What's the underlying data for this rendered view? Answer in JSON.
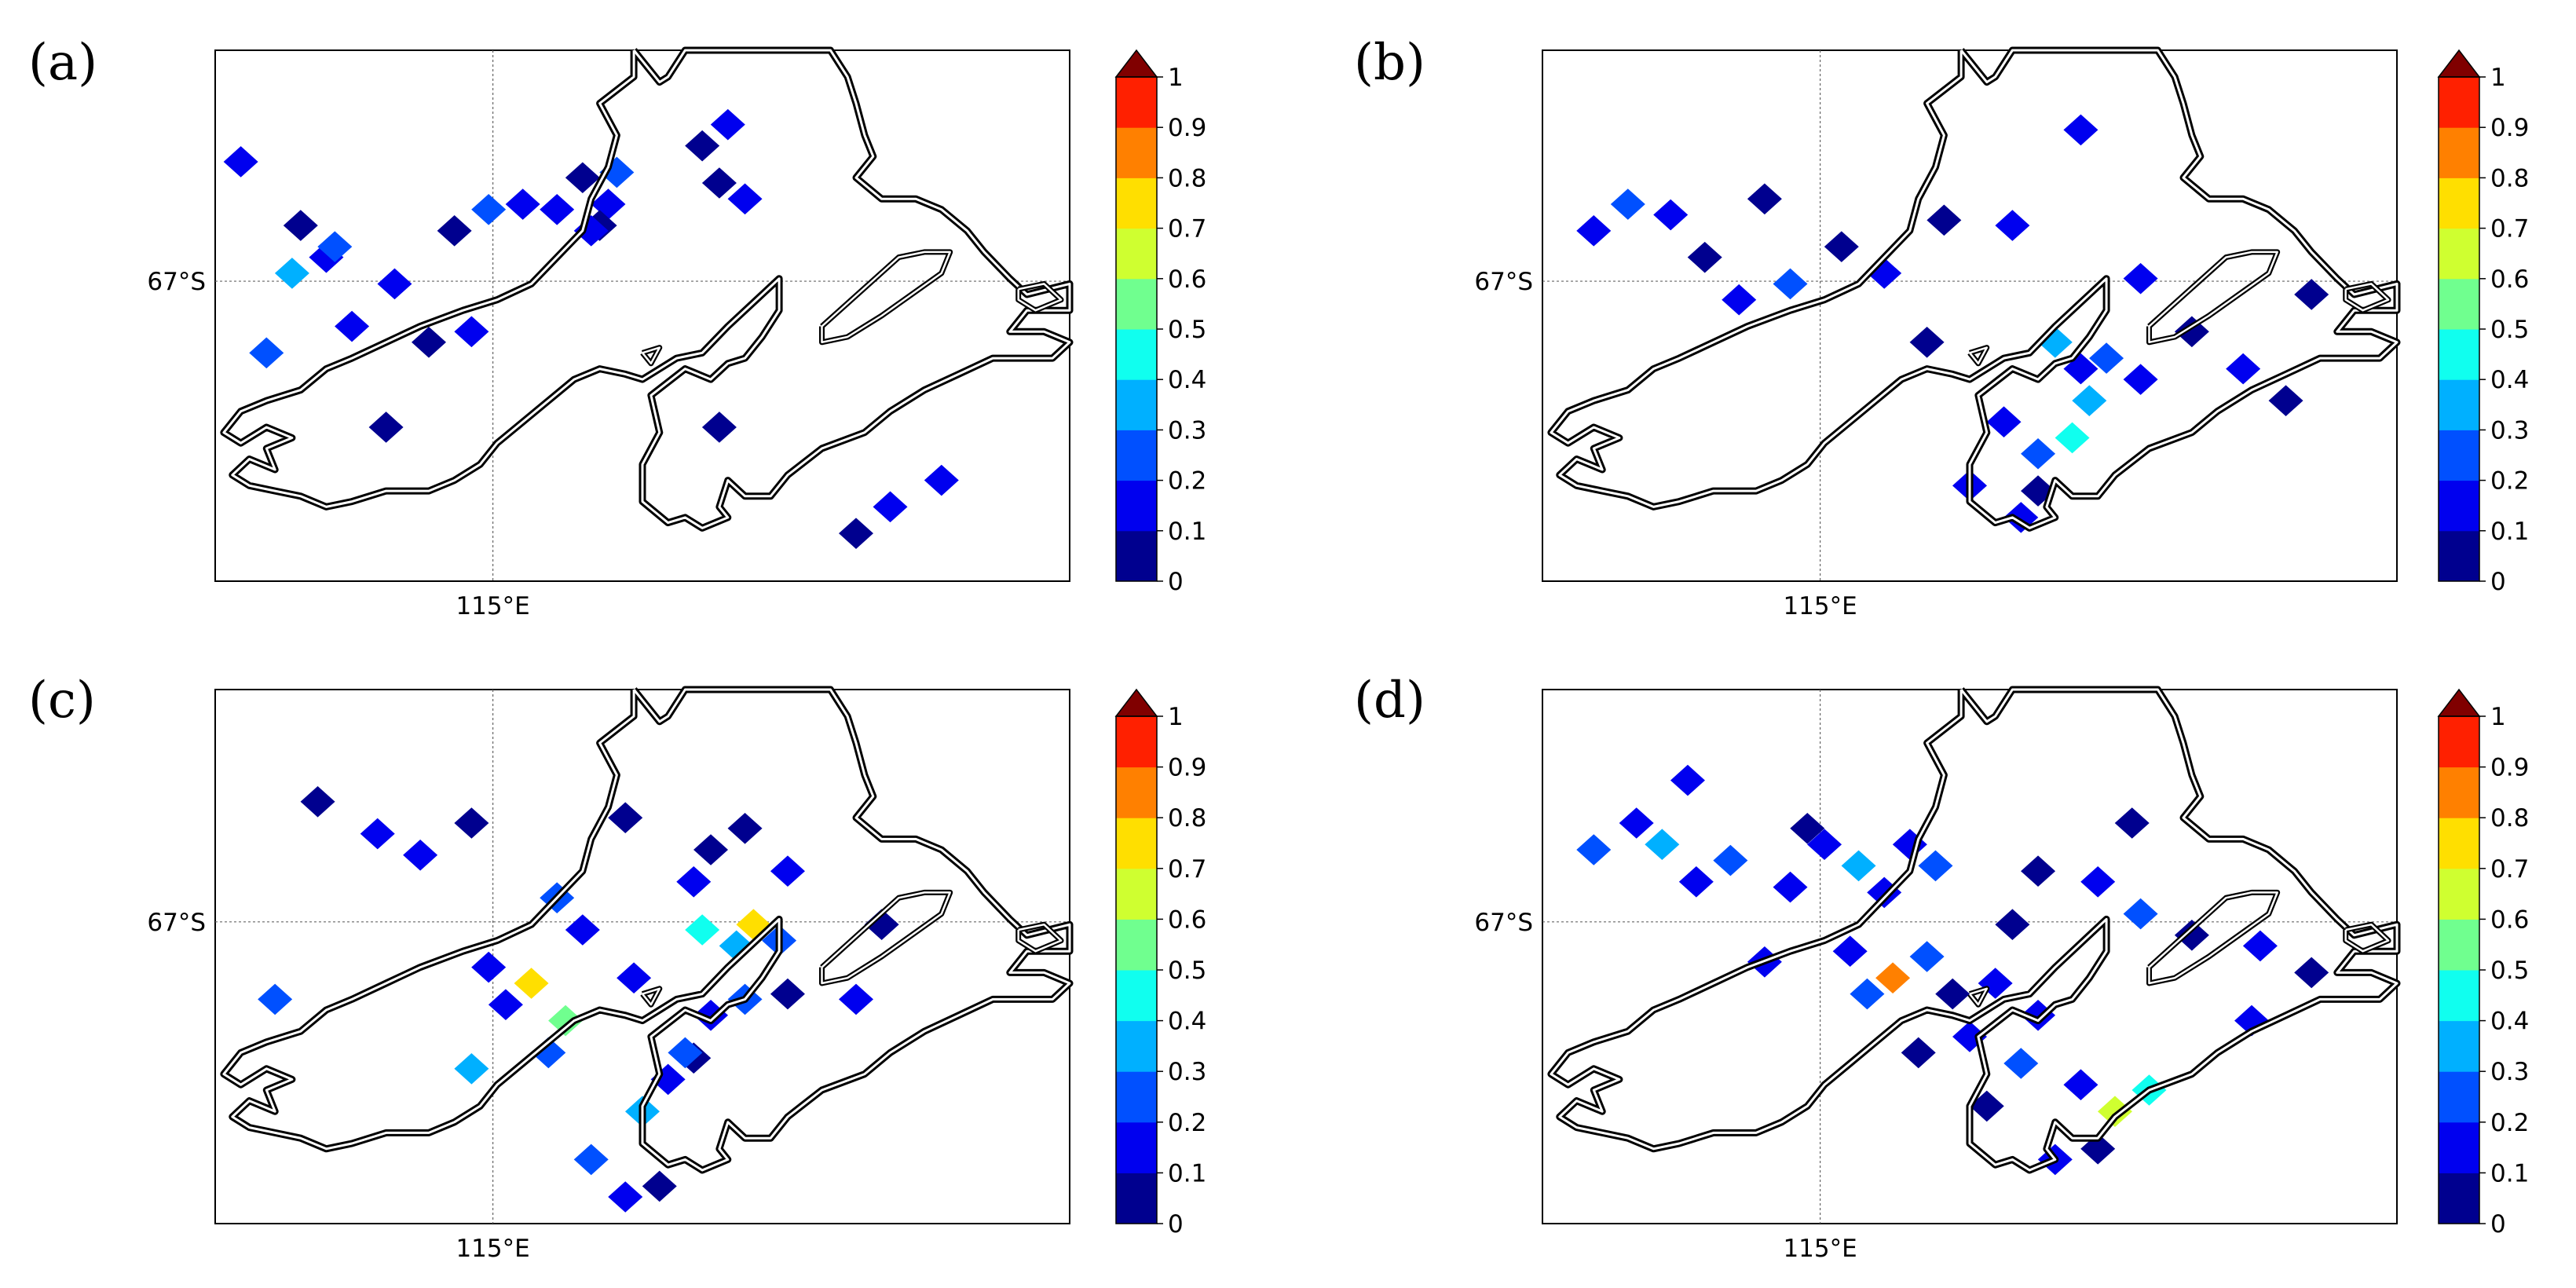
{
  "figure": {
    "panels": [
      {
        "id": "a",
        "label": "(a)",
        "lat_label": "67°S",
        "lon_label": "115°E"
      },
      {
        "id": "b",
        "label": "(b)",
        "lat_label": "67°S",
        "lon_label": "115°E"
      },
      {
        "id": "c",
        "label": "(c)",
        "lat_label": "67°S",
        "lon_label": "115°E"
      },
      {
        "id": "d",
        "label": "(d)",
        "lat_label": "67°S",
        "lon_label": "115°E"
      }
    ],
    "colorbar": {
      "ticks": [
        "0",
        "0.1",
        "0.2",
        "0.3",
        "0.4",
        "0.5",
        "0.6",
        "0.7",
        "0.8",
        "0.9",
        "1"
      ],
      "colors": [
        "#00008f",
        "#0000ef",
        "#0050ff",
        "#00b0ff",
        "#10ffef",
        "#70ff8f",
        "#cfff30",
        "#ffdf00",
        "#ff8000",
        "#ff2000",
        "#bf0000"
      ],
      "extend_color": "#800000",
      "extend": "max"
    },
    "coastline_color": "#000000"
  },
  "patches": {
    "a": [
      [
        0.36,
        0.29,
        1
      ],
      [
        0.43,
        0.24,
        0
      ],
      [
        0.47,
        0.23,
        2
      ],
      [
        0.46,
        0.29,
        1
      ],
      [
        0.45,
        0.33,
        0
      ],
      [
        0.57,
        0.18,
        0
      ],
      [
        0.6,
        0.14,
        1
      ],
      [
        0.44,
        0.34,
        1
      ],
      [
        0.32,
        0.3,
        2
      ],
      [
        0.28,
        0.34,
        0
      ],
      [
        0.4,
        0.3,
        1
      ],
      [
        0.59,
        0.25,
        0
      ],
      [
        0.62,
        0.28,
        1
      ],
      [
        0.13,
        0.39,
        1
      ],
      [
        0.1,
        0.33,
        0
      ],
      [
        0.03,
        0.21,
        1
      ],
      [
        0.09,
        0.42,
        3
      ],
      [
        0.14,
        0.37,
        2
      ],
      [
        0.21,
        0.44,
        1
      ],
      [
        0.25,
        0.55,
        0
      ],
      [
        0.3,
        0.53,
        1
      ],
      [
        0.2,
        0.71,
        0
      ],
      [
        0.16,
        0.52,
        1
      ],
      [
        0.06,
        0.57,
        2
      ],
      [
        0.59,
        0.71,
        0
      ],
      [
        0.85,
        0.81,
        1
      ],
      [
        0.75,
        0.91,
        0
      ],
      [
        0.79,
        0.86,
        1
      ]
    ],
    "b": [
      [
        0.63,
        0.6,
        1
      ],
      [
        0.64,
        0.66,
        3
      ],
      [
        0.62,
        0.73,
        4
      ],
      [
        0.58,
        0.76,
        2
      ],
      [
        0.54,
        0.7,
        1
      ],
      [
        0.6,
        0.55,
        3
      ],
      [
        0.66,
        0.58,
        2
      ],
      [
        0.7,
        0.62,
        1
      ],
      [
        0.58,
        0.83,
        0
      ],
      [
        0.56,
        0.88,
        1
      ],
      [
        0.5,
        0.82,
        1
      ],
      [
        0.45,
        0.55,
        0
      ],
      [
        0.4,
        0.42,
        1
      ],
      [
        0.35,
        0.37,
        0
      ],
      [
        0.29,
        0.44,
        2
      ],
      [
        0.23,
        0.47,
        1
      ],
      [
        0.19,
        0.39,
        0
      ],
      [
        0.15,
        0.31,
        1
      ],
      [
        0.1,
        0.29,
        2
      ],
      [
        0.06,
        0.34,
        1
      ],
      [
        0.26,
        0.28,
        0
      ],
      [
        0.55,
        0.33,
        1
      ],
      [
        0.47,
        0.32,
        0
      ],
      [
        0.7,
        0.43,
        1
      ],
      [
        0.76,
        0.53,
        0
      ],
      [
        0.82,
        0.6,
        1
      ],
      [
        0.87,
        0.66,
        0
      ],
      [
        0.63,
        0.15,
        1
      ],
      [
        0.9,
        0.46,
        0
      ]
    ],
    "c": [
      [
        0.53,
        0.73,
        1
      ],
      [
        0.5,
        0.79,
        3
      ],
      [
        0.44,
        0.88,
        2
      ],
      [
        0.56,
        0.69,
        0
      ],
      [
        0.58,
        0.61,
        1
      ],
      [
        0.61,
        0.48,
        3
      ],
      [
        0.63,
        0.44,
        7
      ],
      [
        0.66,
        0.47,
        2
      ],
      [
        0.57,
        0.45,
        4
      ],
      [
        0.55,
        0.68,
        2
      ],
      [
        0.41,
        0.62,
        5
      ],
      [
        0.39,
        0.68,
        2
      ],
      [
        0.37,
        0.55,
        7
      ],
      [
        0.34,
        0.59,
        1
      ],
      [
        0.3,
        0.71,
        3
      ],
      [
        0.32,
        0.52,
        1
      ],
      [
        0.52,
        0.93,
        0
      ],
      [
        0.48,
        0.95,
        1
      ],
      [
        0.62,
        0.58,
        2
      ],
      [
        0.67,
        0.57,
        0
      ],
      [
        0.75,
        0.58,
        1
      ],
      [
        0.78,
        0.44,
        0
      ],
      [
        0.58,
        0.3,
        0
      ],
      [
        0.67,
        0.34,
        1
      ],
      [
        0.3,
        0.25,
        0
      ],
      [
        0.19,
        0.27,
        1
      ],
      [
        0.12,
        0.21,
        0
      ],
      [
        0.43,
        0.45,
        1
      ],
      [
        0.4,
        0.39,
        2
      ],
      [
        0.49,
        0.54,
        1
      ],
      [
        0.56,
        0.36,
        1
      ],
      [
        0.48,
        0.24,
        0
      ],
      [
        0.07,
        0.58,
        2
      ],
      [
        0.24,
        0.31,
        1
      ],
      [
        0.62,
        0.26,
        0
      ]
    ],
    "d": [
      [
        0.63,
        0.74,
        1
      ],
      [
        0.67,
        0.79,
        6
      ],
      [
        0.71,
        0.75,
        4
      ],
      [
        0.65,
        0.86,
        0
      ],
      [
        0.6,
        0.88,
        1
      ],
      [
        0.56,
        0.7,
        2
      ],
      [
        0.58,
        0.61,
        1
      ],
      [
        0.53,
        0.55,
        1
      ],
      [
        0.48,
        0.57,
        0
      ],
      [
        0.45,
        0.5,
        2
      ],
      [
        0.5,
        0.65,
        1
      ],
      [
        0.52,
        0.78,
        0
      ],
      [
        0.4,
        0.38,
        1
      ],
      [
        0.46,
        0.33,
        2
      ],
      [
        0.43,
        0.29,
        1
      ],
      [
        0.37,
        0.33,
        3
      ],
      [
        0.33,
        0.29,
        1
      ],
      [
        0.31,
        0.26,
        0
      ],
      [
        0.41,
        0.54,
        8
      ],
      [
        0.38,
        0.57,
        2
      ],
      [
        0.36,
        0.49,
        1
      ],
      [
        0.44,
        0.68,
        0
      ],
      [
        0.22,
        0.32,
        2
      ],
      [
        0.18,
        0.36,
        1
      ],
      [
        0.14,
        0.29,
        3
      ],
      [
        0.11,
        0.25,
        1
      ],
      [
        0.06,
        0.3,
        2
      ],
      [
        0.17,
        0.17,
        1
      ],
      [
        0.55,
        0.44,
        0
      ],
      [
        0.65,
        0.36,
        1
      ],
      [
        0.7,
        0.42,
        2
      ],
      [
        0.58,
        0.34,
        0
      ],
      [
        0.26,
        0.51,
        1
      ],
      [
        0.76,
        0.46,
        0
      ],
      [
        0.84,
        0.48,
        1
      ],
      [
        0.9,
        0.53,
        0
      ],
      [
        0.83,
        0.62,
        1
      ],
      [
        0.29,
        0.37,
        1
      ],
      [
        0.69,
        0.25,
        0
      ]
    ]
  }
}
